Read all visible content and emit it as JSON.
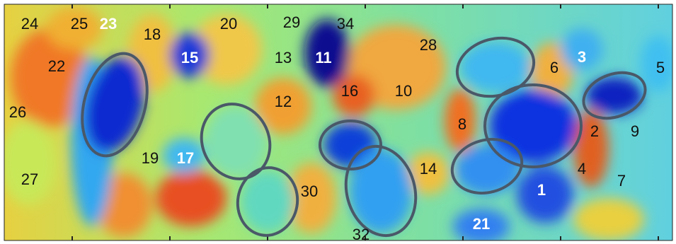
{
  "labels": [
    "24",
    "25",
    "23",
    "18",
    "20",
    "29",
    "34",
    "28",
    "22",
    "15",
    "13",
    "11",
    "16",
    "10",
    "6",
    "3",
    "5",
    "26",
    "12",
    "8",
    "2",
    "9",
    "19",
    "17",
    "14",
    "4",
    "27",
    "30",
    "1",
    "7",
    "21",
    "32"
  ]
}
